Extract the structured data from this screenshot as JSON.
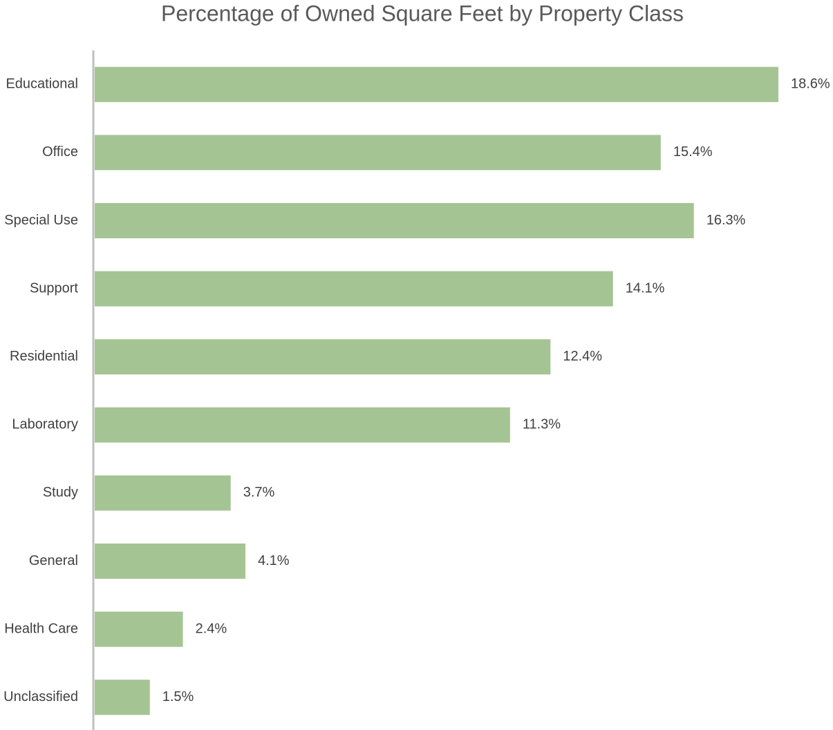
{
  "chart_data": {
    "type": "hbar",
    "title": "Percentage of Owned Square Feet by Property Class",
    "categories": [
      "Educational",
      "Office",
      "Special Use",
      "Support",
      "Residential",
      "Laboratory",
      "Study",
      "General",
      "Health Care",
      "Unclassified"
    ],
    "values": [
      18.6,
      15.4,
      16.3,
      14.1,
      12.4,
      11.3,
      3.7,
      4.1,
      2.4,
      1.5
    ],
    "value_labels": [
      "18.6%",
      "15.4%",
      "16.3%",
      "14.1%",
      "12.4%",
      "11.3%",
      "3.7%",
      "4.1%",
      "2.4%",
      "1.5%"
    ],
    "color": "#a5c493"
  }
}
